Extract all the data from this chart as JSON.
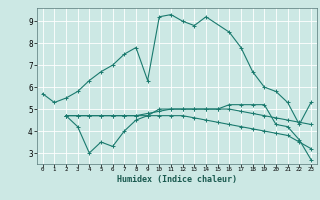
{
  "title": "",
  "xlabel": "Humidex (Indice chaleur)",
  "ylabel": "",
  "background_color": "#cce8e4",
  "grid_color": "#ffffff",
  "line_color": "#1a7a6e",
  "xlim": [
    -0.5,
    23.5
  ],
  "ylim": [
    2.5,
    9.6
  ],
  "xticks": [
    0,
    1,
    2,
    3,
    4,
    5,
    6,
    7,
    8,
    9,
    10,
    11,
    12,
    13,
    14,
    15,
    16,
    17,
    18,
    19,
    20,
    21,
    22,
    23
  ],
  "yticks": [
    3,
    4,
    5,
    6,
    7,
    8,
    9
  ],
  "lines": [
    {
      "x": [
        0,
        1,
        2,
        3,
        4,
        5,
        6,
        7,
        8,
        9,
        10,
        11,
        12,
        13,
        14,
        16,
        17,
        18,
        19,
        20,
        21,
        22,
        23
      ],
      "y": [
        5.7,
        5.3,
        5.5,
        5.8,
        6.3,
        6.7,
        7.0,
        7.5,
        7.8,
        6.3,
        9.2,
        9.3,
        9.0,
        8.8,
        9.2,
        8.5,
        7.8,
        6.7,
        6.0,
        5.8,
        5.3,
        4.3,
        5.3
      ]
    },
    {
      "x": [
        2,
        3,
        4,
        5,
        6,
        7,
        8,
        9,
        10,
        11,
        12,
        13,
        14,
        15,
        16,
        17,
        18,
        19,
        20,
        21,
        22,
        23
      ],
      "y": [
        4.7,
        4.2,
        3.0,
        3.5,
        3.3,
        4.0,
        4.5,
        4.7,
        5.0,
        5.0,
        5.0,
        5.0,
        5.0,
        5.0,
        5.2,
        5.2,
        5.2,
        5.2,
        4.3,
        4.2,
        3.6,
        2.7
      ]
    },
    {
      "x": [
        2,
        3,
        4,
        5,
        6,
        7,
        8,
        9,
        10,
        11,
        12,
        13,
        14,
        15,
        16,
        17,
        18,
        19,
        20,
        21,
        22,
        23
      ],
      "y": [
        4.7,
        4.7,
        4.7,
        4.7,
        4.7,
        4.7,
        4.7,
        4.8,
        4.9,
        5.0,
        5.0,
        5.0,
        5.0,
        5.0,
        5.0,
        4.9,
        4.8,
        4.7,
        4.6,
        4.5,
        4.4,
        4.3
      ]
    },
    {
      "x": [
        2,
        3,
        4,
        5,
        6,
        7,
        8,
        9,
        10,
        11,
        12,
        13,
        14,
        15,
        16,
        17,
        18,
        19,
        20,
        21,
        22,
        23
      ],
      "y": [
        4.7,
        4.7,
        4.7,
        4.7,
        4.7,
        4.7,
        4.7,
        4.7,
        4.7,
        4.7,
        4.7,
        4.6,
        4.5,
        4.4,
        4.3,
        4.2,
        4.1,
        4.0,
        3.9,
        3.8,
        3.5,
        3.2
      ]
    }
  ]
}
